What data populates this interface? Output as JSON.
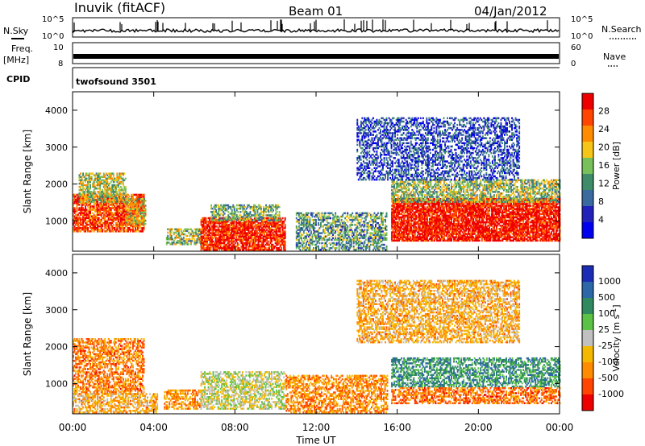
{
  "header": {
    "station": "Inuvik (fitACF)",
    "beam": "Beam 01",
    "date": "04/Jan/2012"
  },
  "left_labels": {
    "nsky": "N.Sky",
    "freq_line1": "Freq.",
    "freq_line2": "[MHz]",
    "cpid": "CPID"
  },
  "right_labels": {
    "nsearch": "N.Search",
    "nave": "Nave"
  },
  "top_panels": {
    "nsky_ticks": [
      "10^5",
      "10^0"
    ],
    "nsearch_ticks": [
      "10^5",
      "10^0"
    ],
    "freq_ticks": [
      "10",
      "8"
    ],
    "nave_ticks": [
      "60",
      "0"
    ],
    "cpid_text": "twofsound 3501"
  },
  "colors": {
    "power_scale": [
      "#0000ee",
      "#2222bb",
      "#3a6aa0",
      "#3e8c6a",
      "#77c05a",
      "#f5c518",
      "#ff8c00",
      "#ff4500",
      "#ee0000"
    ],
    "velocity_scale": [
      "#1a2cb4",
      "#2c67a8",
      "#2f8a60",
      "#5cc246",
      "#c0c0c0",
      "#f5b800",
      "#ff8c00",
      "#ff4500",
      "#ee0000"
    ]
  },
  "chart_data": [
    {
      "type": "heatmap",
      "title": "",
      "quantity": "Power",
      "xlabel": "",
      "ylabel": "Slant Range [km]",
      "xlim": [
        "00:00",
        "24:00"
      ],
      "ylim": [
        180,
        4500
      ],
      "y_ticks": [
        "4000",
        "3000",
        "2000",
        "1000"
      ],
      "y_tick_values": [
        4000,
        3000,
        2000,
        1000
      ],
      "colorbar": {
        "label": "Power [dB]",
        "ticks": [
          "28",
          "24",
          "20",
          "16",
          "12",
          "8",
          "4"
        ],
        "tick_values": [
          28,
          24,
          20,
          16,
          12,
          8,
          4
        ],
        "range": [
          0,
          32
        ]
      },
      "regions": [
        {
          "t0": 0.0,
          "t1": 3.5,
          "r0": 700,
          "r1": 1700,
          "level": 0.85
        },
        {
          "t0": 0.3,
          "t1": 2.6,
          "r0": 1500,
          "r1": 2300,
          "level": 0.55
        },
        {
          "t0": 2.6,
          "t1": 3.6,
          "r0": 900,
          "r1": 1600,
          "level": 0.6
        },
        {
          "t0": 4.6,
          "t1": 6.3,
          "r0": 350,
          "r1": 800,
          "level": 0.5
        },
        {
          "t0": 6.3,
          "t1": 10.5,
          "r0": 200,
          "r1": 1100,
          "level": 0.92
        },
        {
          "t0": 6.8,
          "t1": 10.2,
          "r0": 1000,
          "r1": 1450,
          "level": 0.45
        },
        {
          "t0": 11.0,
          "t1": 15.5,
          "r0": 200,
          "r1": 1200,
          "level": 0.4
        },
        {
          "t0": 15.7,
          "t1": 24.0,
          "r0": 450,
          "r1": 1600,
          "level": 0.95
        },
        {
          "t0": 15.7,
          "t1": 24.0,
          "r0": 1500,
          "r1": 2100,
          "level": 0.5
        },
        {
          "t0": 14.0,
          "t1": 22.0,
          "r0": 2100,
          "r1": 3800,
          "level": 0.22
        }
      ]
    },
    {
      "type": "heatmap",
      "title": "",
      "quantity": "Velocity",
      "xlabel": "Time UT",
      "ylabel": "Slant Range [km]",
      "xlim": [
        "00:00",
        "24:00"
      ],
      "ylim": [
        180,
        4500
      ],
      "x_ticks": [
        "00:00",
        "04:00",
        "08:00",
        "12:00",
        "16:00",
        "20:00",
        "00:00"
      ],
      "x_tick_values": [
        0,
        4,
        8,
        12,
        16,
        20,
        24
      ],
      "y_ticks": [
        "4000",
        "3000",
        "2000",
        "1000"
      ],
      "y_tick_values": [
        4000,
        3000,
        2000,
        1000
      ],
      "colorbar": {
        "label": "Velocity [m s^-1]",
        "ticks": [
          "1000",
          "500",
          "100",
          "25",
          "-25",
          "-100",
          "-500",
          "-1000"
        ],
        "tick_values": [
          1000,
          500,
          100,
          25,
          -25,
          -100,
          -500,
          -1000
        ]
      },
      "regions": [
        {
          "t0": 0.0,
          "t1": 3.5,
          "r0": 700,
          "r1": 2200,
          "vel": -0.5
        },
        {
          "t0": 0.0,
          "t1": 4.2,
          "r0": 200,
          "r1": 700,
          "vel": -0.3
        },
        {
          "t0": 4.5,
          "t1": 6.3,
          "r0": 300,
          "r1": 800,
          "vel": -0.4
        },
        {
          "t0": 6.3,
          "t1": 10.5,
          "r0": 300,
          "r1": 1300,
          "vel": 0.0
        },
        {
          "t0": 10.5,
          "t1": 15.5,
          "r0": 200,
          "r1": 1200,
          "vel": -0.45
        },
        {
          "t0": 15.7,
          "t1": 24.0,
          "r0": 900,
          "r1": 1700,
          "vel": 0.45
        },
        {
          "t0": 15.7,
          "t1": 24.0,
          "r0": 450,
          "r1": 900,
          "vel": -0.55
        },
        {
          "t0": 14.0,
          "t1": 22.0,
          "r0": 2100,
          "r1": 3800,
          "vel": -0.3
        }
      ]
    }
  ]
}
